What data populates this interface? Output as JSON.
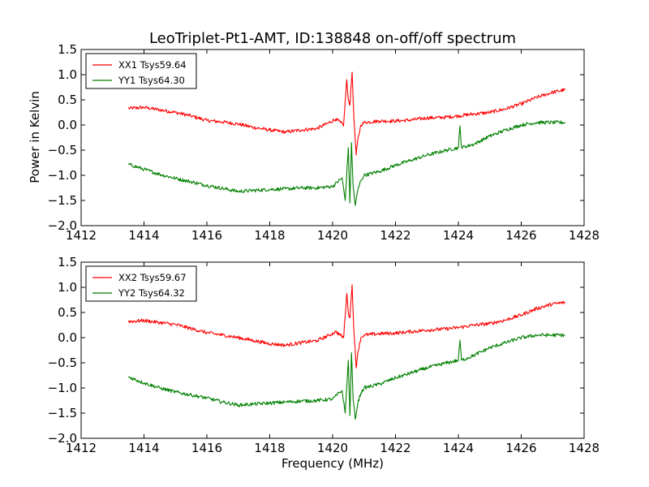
{
  "figure": {
    "title": "LeoTriplet-Pt1-AMT, ID:138848 on-off/off spectrum",
    "xlabel": "Frequency (MHz)",
    "ylabel": "Power in Kelvin"
  },
  "colors": {
    "xx": "#ff0000",
    "yy": "#007f00"
  },
  "chart_data": [
    {
      "type": "line",
      "title": "LeoTriplet-Pt1-AMT, ID:138848 on-off/off spectrum",
      "xlabel": "",
      "ylabel": "Power in Kelvin",
      "xlim": [
        1412,
        1428
      ],
      "ylim": [
        -2.0,
        1.5
      ],
      "xticks": [
        "1412",
        "1414",
        "1416",
        "1418",
        "1420",
        "1422",
        "1424",
        "1426",
        "1428"
      ],
      "yticks": [
        "1.5",
        "1.0",
        "0.5",
        "0.0",
        "−0.5",
        "−1.0",
        "−1.5",
        "−2.0"
      ],
      "legend_position": "top-left",
      "grid": false,
      "series": [
        {
          "name": "XX1 Tsys59.64",
          "color": "#ff0000",
          "x": [
            1413.5,
            1414.0,
            1414.5,
            1415.0,
            1415.5,
            1416.0,
            1416.5,
            1417.0,
            1417.5,
            1418.0,
            1418.5,
            1419.0,
            1419.5,
            1419.9,
            1420.1,
            1420.25,
            1420.35,
            1420.45,
            1420.5,
            1420.55,
            1420.62,
            1420.68,
            1420.75,
            1420.8,
            1420.9,
            1421.0,
            1421.5,
            1422.0,
            1422.5,
            1423.0,
            1423.5,
            1424.0,
            1424.5,
            1425.0,
            1425.5,
            1426.0,
            1426.5,
            1427.0,
            1427.4
          ],
          "y": [
            0.33,
            0.35,
            0.3,
            0.25,
            0.18,
            0.09,
            0.06,
            0.02,
            -0.05,
            -0.1,
            -0.14,
            -0.1,
            -0.07,
            0.05,
            0.12,
            0.05,
            0.0,
            0.9,
            0.5,
            0.4,
            1.05,
            0.1,
            -0.6,
            -0.3,
            0.0,
            0.05,
            0.08,
            0.08,
            0.1,
            0.14,
            0.15,
            0.18,
            0.22,
            0.25,
            0.32,
            0.42,
            0.55,
            0.65,
            0.7
          ]
        },
        {
          "name": "YY1 Tsys64.30",
          "color": "#007f00",
          "x": [
            1413.5,
            1414.0,
            1414.5,
            1415.0,
            1415.5,
            1416.0,
            1416.5,
            1417.0,
            1417.5,
            1418.0,
            1418.5,
            1419.0,
            1419.5,
            1420.0,
            1420.3,
            1420.4,
            1420.5,
            1420.55,
            1420.6,
            1420.65,
            1420.72,
            1420.8,
            1420.9,
            1421.0,
            1421.5,
            1422.0,
            1422.5,
            1423.0,
            1423.5,
            1424.0,
            1424.05,
            1424.1,
            1424.5,
            1425.0,
            1425.5,
            1426.0,
            1426.5,
            1427.0,
            1427.4
          ],
          "y": [
            -0.78,
            -0.88,
            -0.98,
            -1.06,
            -1.13,
            -1.2,
            -1.26,
            -1.32,
            -1.3,
            -1.28,
            -1.27,
            -1.25,
            -1.25,
            -1.22,
            -1.05,
            -1.5,
            -0.45,
            -1.55,
            -0.35,
            -1.2,
            -1.6,
            -1.3,
            -1.1,
            -1.0,
            -0.92,
            -0.8,
            -0.7,
            -0.6,
            -0.52,
            -0.45,
            -0.02,
            -0.45,
            -0.38,
            -0.22,
            -0.1,
            0.0,
            0.05,
            0.05,
            0.05
          ]
        }
      ]
    },
    {
      "type": "line",
      "title": "",
      "xlabel": "Frequency (MHz)",
      "ylabel": "",
      "xlim": [
        1412,
        1428
      ],
      "ylim": [
        -2.0,
        1.5
      ],
      "xticks": [
        "1412",
        "1414",
        "1416",
        "1418",
        "1420",
        "1422",
        "1424",
        "1426",
        "1428"
      ],
      "yticks": [
        "1.5",
        "1.0",
        "0.5",
        "0.0",
        "−0.5",
        "−1.0",
        "−1.5",
        "−2.0"
      ],
      "legend_position": "top-left",
      "grid": false,
      "series": [
        {
          "name": "XX2 Tsys59.67",
          "color": "#ff0000",
          "x": [
            1413.5,
            1414.0,
            1414.5,
            1415.0,
            1415.5,
            1416.0,
            1416.5,
            1417.0,
            1417.5,
            1418.0,
            1418.5,
            1419.0,
            1419.5,
            1419.9,
            1420.1,
            1420.25,
            1420.35,
            1420.45,
            1420.5,
            1420.55,
            1420.62,
            1420.68,
            1420.75,
            1420.8,
            1420.9,
            1421.0,
            1421.5,
            1422.0,
            1422.5,
            1423.0,
            1423.5,
            1424.0,
            1424.5,
            1425.0,
            1425.5,
            1426.0,
            1426.5,
            1427.0,
            1427.4
          ],
          "y": [
            0.32,
            0.34,
            0.3,
            0.26,
            0.18,
            0.1,
            0.05,
            0.0,
            -0.06,
            -0.12,
            -0.15,
            -0.1,
            -0.06,
            0.05,
            0.12,
            0.05,
            0.0,
            0.88,
            0.5,
            0.4,
            1.05,
            0.1,
            -0.6,
            -0.3,
            0.0,
            0.05,
            0.08,
            0.09,
            0.12,
            0.15,
            0.17,
            0.2,
            0.25,
            0.28,
            0.35,
            0.45,
            0.58,
            0.67,
            0.7
          ]
        },
        {
          "name": "YY2 Tsys64.32",
          "color": "#007f00",
          "x": [
            1413.5,
            1414.0,
            1414.5,
            1415.0,
            1415.5,
            1416.0,
            1416.5,
            1417.0,
            1417.5,
            1418.0,
            1418.5,
            1419.0,
            1419.5,
            1420.0,
            1420.3,
            1420.4,
            1420.5,
            1420.55,
            1420.6,
            1420.65,
            1420.72,
            1420.8,
            1420.9,
            1421.0,
            1421.5,
            1422.0,
            1422.5,
            1423.0,
            1423.5,
            1424.0,
            1424.05,
            1424.1,
            1424.5,
            1425.0,
            1425.5,
            1426.0,
            1426.5,
            1427.0,
            1427.4
          ],
          "y": [
            -0.78,
            -0.9,
            -1.0,
            -1.08,
            -1.14,
            -1.2,
            -1.28,
            -1.34,
            -1.32,
            -1.3,
            -1.28,
            -1.26,
            -1.25,
            -1.22,
            -1.05,
            -1.5,
            -0.45,
            -1.55,
            -0.3,
            -1.2,
            -1.62,
            -1.3,
            -1.1,
            -1.0,
            -0.92,
            -0.8,
            -0.7,
            -0.6,
            -0.52,
            -0.45,
            -0.05,
            -0.45,
            -0.35,
            -0.2,
            -0.1,
            0.0,
            0.05,
            0.05,
            0.05
          ]
        }
      ]
    }
  ]
}
